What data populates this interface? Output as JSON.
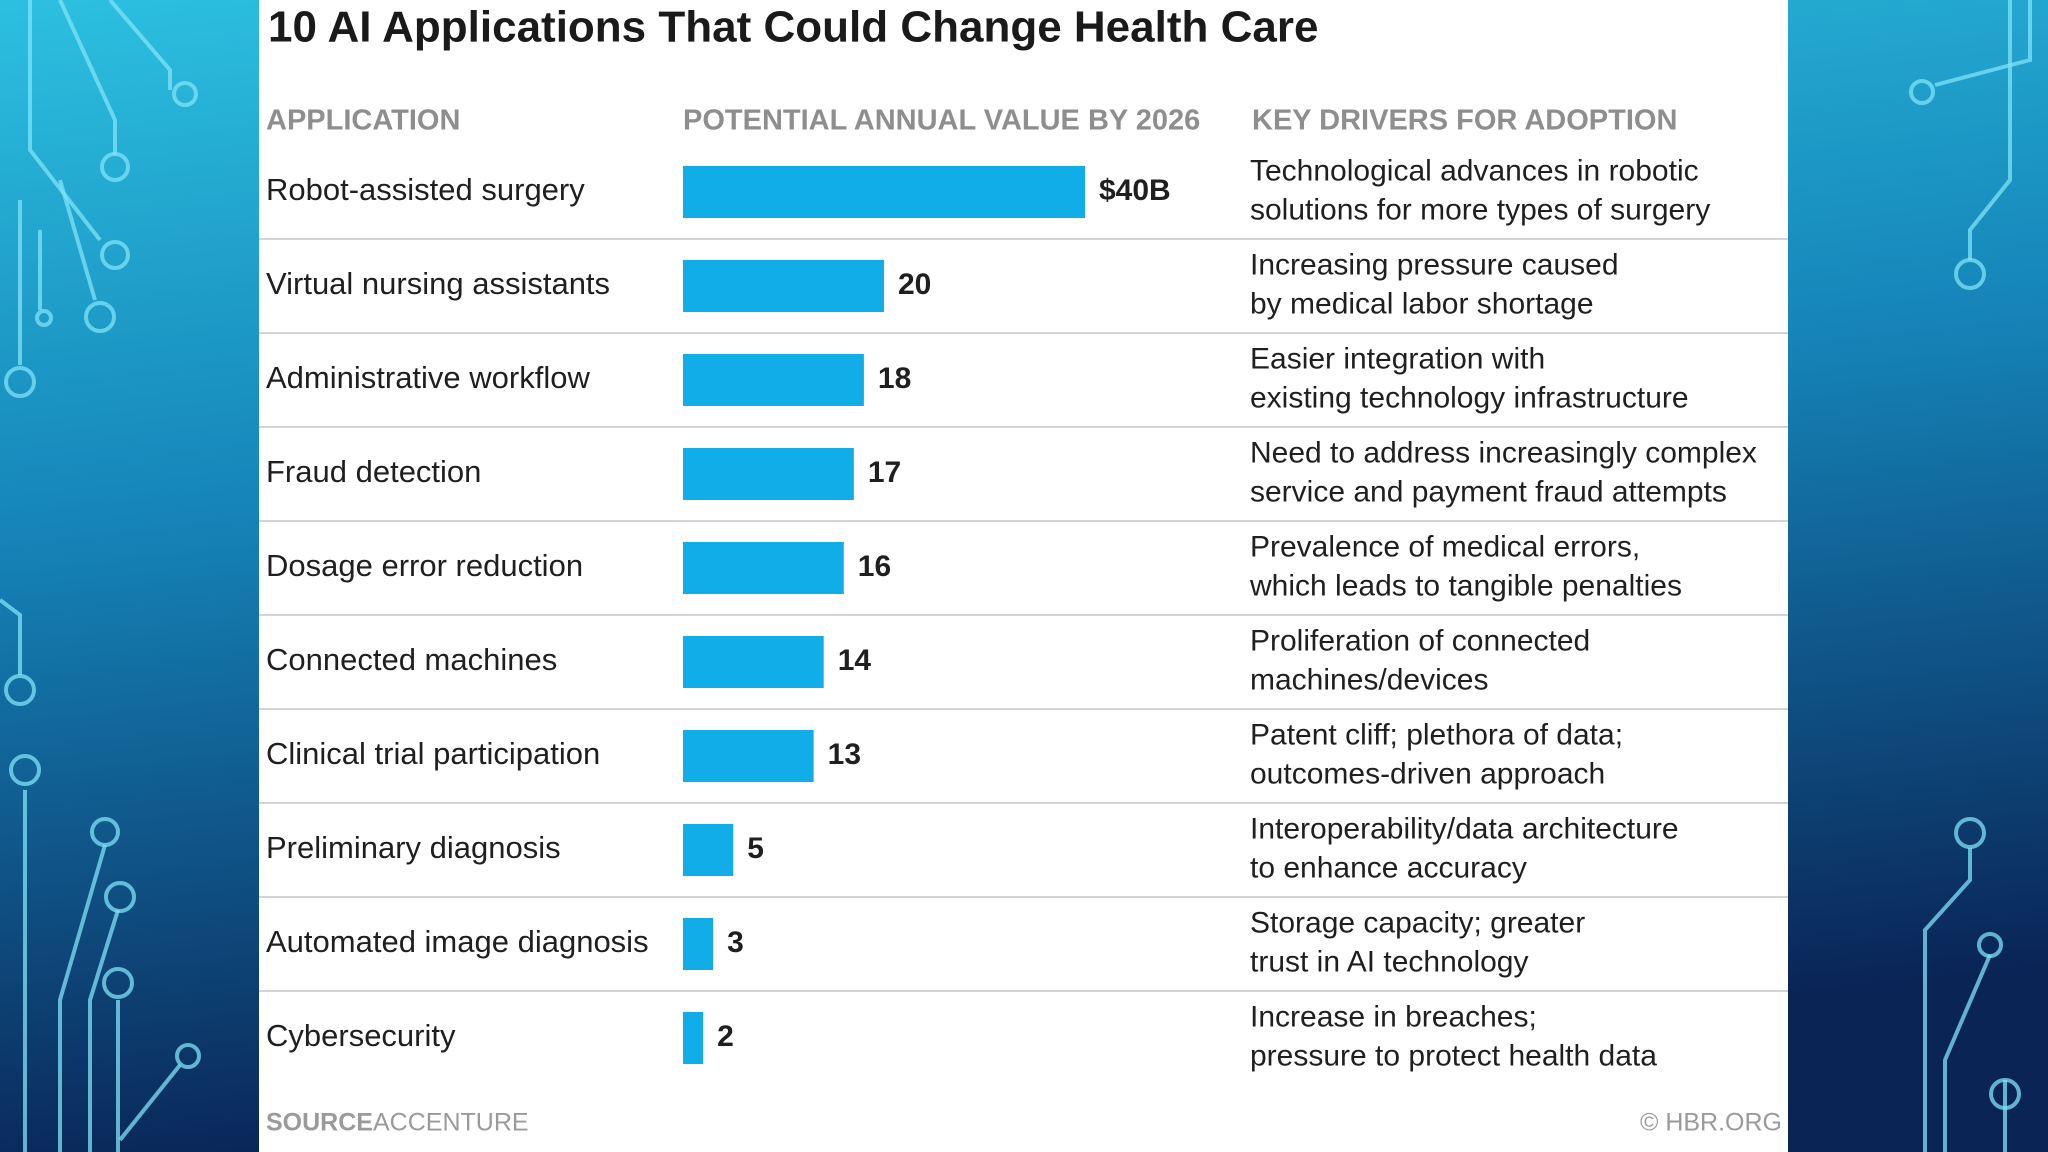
{
  "chart_data": {
    "type": "bar",
    "title": "10 AI Applications That Could Change Health Care",
    "headers": [
      "APPLICATION",
      "POTENTIAL ANNUAL VALUE BY 2026",
      "KEY DRIVERS FOR ADOPTION"
    ],
    "categories": [
      "Robot-assisted surgery",
      "Virtual nursing assistants",
      "Administrative workflow",
      "Fraud detection",
      "Dosage error reduction",
      "Connected machines",
      "Clinical trial participation",
      "Preliminary diagnosis",
      "Automated image diagnosis",
      "Cybersecurity"
    ],
    "values": [
      40,
      20,
      18,
      17,
      16,
      14,
      13,
      5,
      3,
      2
    ],
    "value_labels": [
      "$40B",
      "20",
      "18",
      "17",
      "16",
      "14",
      "13",
      "5",
      "3",
      "2"
    ],
    "color": "#10ade8",
    "drivers": [
      [
        "Technological advances in robotic",
        "solutions for more types of surgery"
      ],
      [
        "Increasing pressure caused",
        "by medical labor shortage"
      ],
      [
        "Easier integration with",
        "existing technology infrastructure"
      ],
      [
        "Need to address increasingly complex",
        "service and payment fraud attempts"
      ],
      [
        "Prevalence of medical errors,",
        "which leads to tangible penalties"
      ],
      [
        "Proliferation of connected",
        "machines/devices"
      ],
      [
        "Patent cliff; plethora of data;",
        "outcomes-driven approach"
      ],
      [
        "Interoperability/data architecture",
        "to enhance accuracy"
      ],
      [
        "Storage capacity; greater",
        "trust in AI technology"
      ],
      [
        "Increase in breaches;",
        "pressure to protect health data"
      ]
    ],
    "source_label": "SOURCE",
    "source": "ACCENTURE",
    "credit": "© HBR.ORG"
  }
}
